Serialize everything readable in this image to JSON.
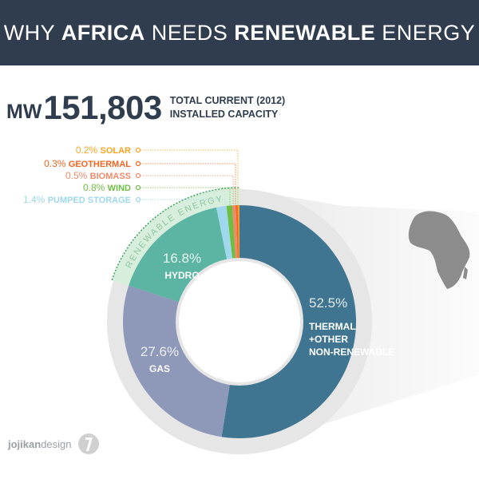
{
  "header": {
    "title_parts": [
      "WHY ",
      "AFRICA",
      " NEEDS ",
      "RENEWABLE",
      " ENERGY"
    ]
  },
  "capacity": {
    "unit": "MW",
    "value": "151,803",
    "label_line1": "TOTAL CURRENT (2012)",
    "label_line2": "INSTALLED CAPACITY"
  },
  "chart_data": {
    "type": "pie",
    "title": "",
    "renewable_group_label": "RENEWABLE ENERGY",
    "slices": [
      {
        "label": "SOLAR",
        "value": 0.2,
        "value_text": "0.2%",
        "color": "#f5a623"
      },
      {
        "label": "GEOTHERMAL",
        "value": 0.3,
        "value_text": "0.3%",
        "color": "#f26522"
      },
      {
        "label": "BIOMASS",
        "value": 0.5,
        "value_text": "0.5%",
        "color": "#f08a6c"
      },
      {
        "label": "WIND",
        "value": 0.8,
        "value_text": "0.8%",
        "color": "#6fbe44"
      },
      {
        "label": "PUMPED STORAGE",
        "value": 1.4,
        "value_text": "1.4%",
        "color": "#9fd8ec"
      },
      {
        "label": "HYDRO",
        "value": 16.8,
        "value_text": "16.8%",
        "color": "#5bb5a2"
      },
      {
        "label": "GAS",
        "value": 27.6,
        "value_text": "27.6%",
        "color": "#8e98b8"
      },
      {
        "label": "THERMAL +OTHER NON-RENEWABLE",
        "label_lines": [
          "THERMAL",
          "+OTHER",
          "NON-RENEWABLE"
        ],
        "value": 52.5,
        "value_text": "52.5%",
        "color": "#3f7590"
      }
    ],
    "renewable_band_color": "#d7eedd",
    "outer_ring_color": "#e6e6e6"
  },
  "map": {
    "icon": "africa-map-icon",
    "color": "#8c8c8c"
  },
  "footer": {
    "brand_bold": "jojikan",
    "brand_rest": "design",
    "icon": "jojikan-logo-icon"
  }
}
